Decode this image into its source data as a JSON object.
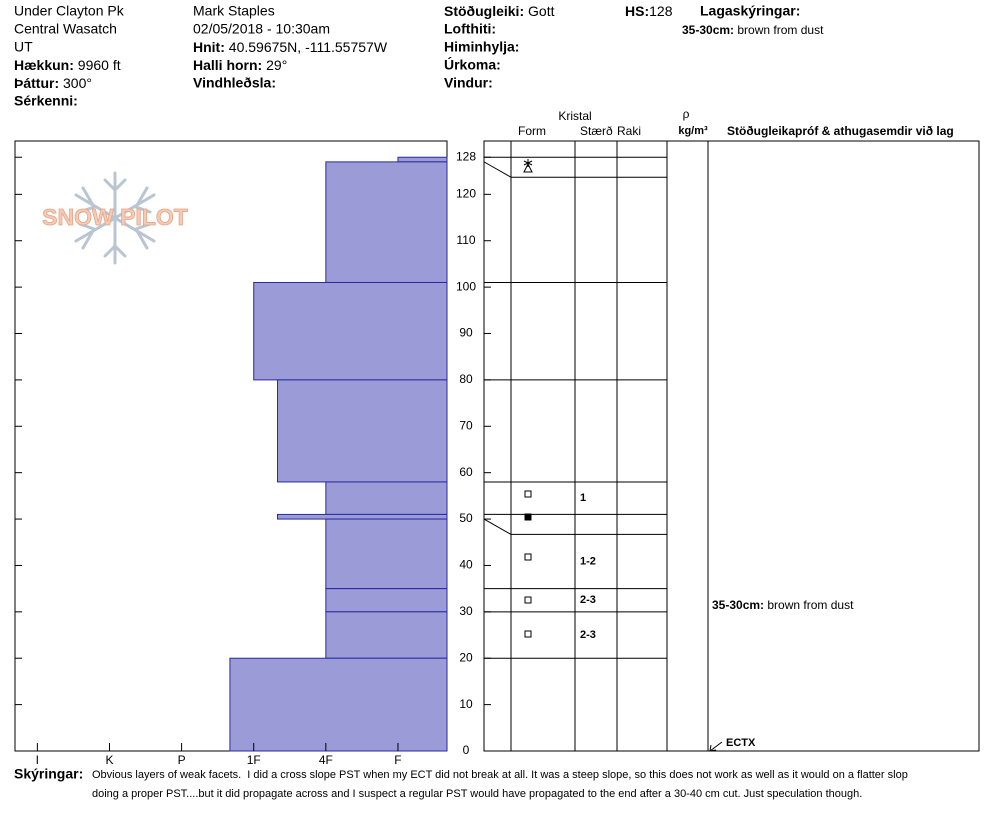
{
  "header": {
    "site": [
      "Under Clayton Pk",
      "Central Wasatch",
      "UT"
    ],
    "observer": "Mark Staples",
    "datetime": "02/05/2018 - 10:30am",
    "elevation": {
      "label": "Hækkun:",
      "value": "9960 ft"
    },
    "aspect": {
      "label": "Þáttur:",
      "value": "300°"
    },
    "features": {
      "label": "Sérkenni:"
    },
    "coordinates": {
      "label": "Hnit:",
      "value": "40.59675N, -111.55757W"
    },
    "slope": {
      "label": "Halli horn:",
      "value": "29°"
    },
    "wind_loading": {
      "label": "Vindhleðsla:"
    },
    "stability": {
      "label": "Stöðugleiki:",
      "value": "Gott"
    },
    "air_temp": {
      "label": "Lofthiti:"
    },
    "sky": {
      "label": "Himinhylja:"
    },
    "precipitation": {
      "label": "Úrkoma:"
    },
    "wind": {
      "label": "Vindur:"
    },
    "hs": {
      "label": "HS:",
      "value": 128
    },
    "layer_notes_title": "Lagaskýringar:"
  },
  "logo": "SNOW PILOT",
  "chart_data": {
    "type": "hardness-profile",
    "layers": [
      {
        "top": 128,
        "bottom": 127,
        "hardness": 1
      },
      {
        "top": 127,
        "bottom": 101,
        "hardness": 2
      },
      {
        "top": 101,
        "bottom": 80,
        "hardness": 3
      },
      {
        "top": 80,
        "bottom": 58,
        "hardness": 2.67
      },
      {
        "top": 58,
        "bottom": 51,
        "hardness": 2,
        "grain_size": 1
      },
      {
        "top": 51,
        "bottom": 50,
        "hardness": 2.67
      },
      {
        "top": 50,
        "bottom": 35,
        "hardness": 2,
        "grain_size": "1-2"
      },
      {
        "top": 35,
        "bottom": 30,
        "hardness": 2,
        "grain_size": "2-3"
      },
      {
        "top": 30,
        "bottom": 20,
        "hardness": 2,
        "grain_size": "2-3"
      },
      {
        "top": 20,
        "bottom": 0,
        "hardness": 3.33
      }
    ],
    "xlim": [
      6.31,
      0.32
    ],
    "xticks": [
      {
        "value": 6,
        "label": "I"
      },
      {
        "value": 5,
        "label": "K"
      },
      {
        "value": 4,
        "label": "P"
      },
      {
        "value": 3,
        "label": "1F"
      },
      {
        "value": 2,
        "label": "4F"
      },
      {
        "value": 1,
        "label": "F"
      }
    ],
    "ylim": [
      0,
      131.5
    ],
    "yticks": [
      0,
      10,
      20,
      30,
      40,
      50,
      60,
      70,
      80,
      90,
      100,
      110,
      120,
      128
    ],
    "color": "#9b9bd8",
    "edge_color": "#2a2aa0"
  },
  "table": {
    "crystal": "Kristal",
    "form": "Form",
    "size": "Stærð",
    "moisture": "Raki",
    "density_symbol": "ρ",
    "density_unit": "kg/m³",
    "tests_comments": "Stöðugleikapróf & athugasemdir við lag"
  },
  "layer_comments": [
    {
      "layer": "35-30cm:",
      "text": "brown from dust"
    }
  ],
  "tests": [
    {
      "result": "ECTX",
      "height": 0
    }
  ],
  "notes": {
    "label": "Skýringar:",
    "lines": [
      "Obvious layers of weak facets.  I did a cross slope PST when my ECT did not break at all. It was a steep slope, so this does not work as well as it would on a flatter slop",
      "doing a proper PST....but it did propagate across and I suspect a regular PST would have propagated to the end after a 30-40 cm cut. Just speculation though."
    ]
  }
}
